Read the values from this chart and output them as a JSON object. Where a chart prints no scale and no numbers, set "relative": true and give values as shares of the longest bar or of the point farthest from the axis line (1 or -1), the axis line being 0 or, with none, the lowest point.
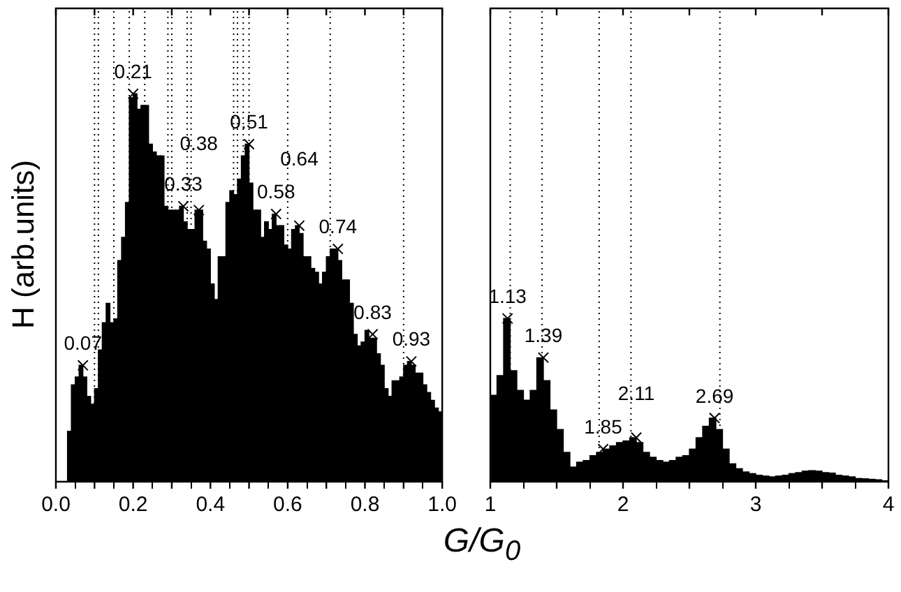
{
  "chart_data": [
    {
      "type": "histogram",
      "relative": true,
      "ylabel": "H (arb.units)",
      "xlabel": "G/G$_{0}$",
      "tick_labels": "x",
      "marker": "cross",
      "xlim": [
        0,
        1
      ],
      "xticks": [
        {
          "value": 0,
          "label": "0.0"
        },
        {
          "value": 0.1,
          "label": null
        },
        {
          "value": 0.2,
          "label": "0.2"
        },
        {
          "value": 0.3,
          "label": null
        },
        {
          "value": 0.4,
          "label": "0.4"
        },
        {
          "value": 0.5,
          "label": null
        },
        {
          "value": 0.6,
          "label": "0.6"
        },
        {
          "value": 0.7,
          "label": null
        },
        {
          "value": 0.8,
          "label": "0.8"
        },
        {
          "value": 0.9,
          "label": null
        },
        {
          "value": 1,
          "label": "1.0"
        }
      ],
      "series": [
        {
          "type": "histogram",
          "color": "#000000",
          "bins": [
            0.03,
            0.04,
            0.05,
            0.06,
            0.07,
            0.08,
            0.09,
            0.1,
            0.11,
            0.12,
            0.13,
            0.14,
            0.15,
            0.16,
            0.17,
            0.18,
            0.19,
            0.2,
            0.21,
            0.22,
            0.23,
            0.24,
            0.25,
            0.26,
            0.27,
            0.28,
            0.29,
            0.3,
            0.31,
            0.32,
            0.33,
            0.34,
            0.35,
            0.36,
            0.37,
            0.38,
            0.39,
            0.4,
            0.41,
            0.42,
            0.43,
            0.44,
            0.45,
            0.46,
            0.47,
            0.48,
            0.49,
            0.5,
            0.51,
            0.52,
            0.53,
            0.54,
            0.55,
            0.56,
            0.57,
            0.58,
            0.59,
            0.6,
            0.61,
            0.62,
            0.63,
            0.64,
            0.65,
            0.66,
            0.67,
            0.68,
            0.69,
            0.7,
            0.71,
            0.72,
            0.73,
            0.74,
            0.75,
            0.76,
            0.77,
            0.78,
            0.79,
            0.8,
            0.81,
            0.82,
            0.83,
            0.84,
            0.85,
            0.86,
            0.87,
            0.88,
            0.89,
            0.9,
            0.91,
            0.92,
            0.93,
            0.94,
            0.95,
            0.96,
            0.97,
            0.98,
            0.99,
            1.0
          ],
          "values": [
            0.13,
            0.25,
            0.27,
            0.3,
            0.27,
            0.22,
            0.2,
            0.24,
            0.34,
            0.41,
            0.46,
            0.41,
            0.42,
            0.57,
            0.63,
            0.72,
            0.99,
            1.0,
            0.96,
            0.97,
            0.97,
            0.87,
            0.85,
            0.84,
            0.84,
            0.71,
            0.7,
            0.7,
            0.7,
            0.71,
            0.67,
            0.65,
            0.65,
            0.7,
            0.7,
            0.62,
            0.6,
            0.51,
            0.47,
            0.58,
            0.58,
            0.72,
            0.75,
            0.74,
            0.78,
            0.84,
            0.87,
            0.77,
            0.7,
            0.7,
            0.63,
            0.67,
            0.65,
            0.69,
            0.66,
            0.66,
            0.61,
            0.6,
            0.65,
            0.66,
            0.64,
            0.58,
            0.58,
            0.55,
            0.54,
            0.51,
            0.54,
            0.58,
            0.6,
            0.6,
            0.57,
            0.52,
            0.52,
            0.46,
            0.38,
            0.35,
            0.36,
            0.39,
            0.37,
            0.37,
            0.33,
            0.3,
            0.24,
            0.22,
            0.26,
            0.26,
            0.27,
            0.3,
            0.31,
            0.3,
            0.28,
            0.28,
            0.25,
            0.23,
            0.21,
            0.19,
            0.18
          ]
        },
        {
          "type": "scatter",
          "color": "#000000",
          "x": [
            0.07,
            0.2,
            0.33,
            0.37,
            0.5,
            0.57,
            0.63,
            0.73,
            0.82,
            0.92
          ],
          "values": [
            0.3,
            1.0,
            0.71,
            0.7,
            0.87,
            0.69,
            0.66,
            0.6,
            0.38,
            0.31
          ]
        }
      ],
      "ref_lines": [
        {
          "axis": "x",
          "value": 0.1,
          "line_style": "dotted",
          "color": "#000000"
        },
        {
          "axis": "x",
          "value": 0.11,
          "line_style": "dotted",
          "color": "#000000"
        },
        {
          "axis": "x",
          "value": 0.15,
          "line_style": "dotted",
          "color": "#000000"
        },
        {
          "axis": "x",
          "value": 0.19,
          "line_style": "dotted",
          "color": "#000000"
        },
        {
          "axis": "x",
          "value": 0.23,
          "line_style": "dotted",
          "color": "#000000"
        },
        {
          "axis": "x",
          "value": 0.29,
          "line_style": "dotted",
          "color": "#000000"
        },
        {
          "axis": "x",
          "value": 0.3,
          "line_style": "dotted",
          "color": "#000000"
        },
        {
          "axis": "x",
          "value": 0.34,
          "line_style": "dotted",
          "color": "#000000"
        },
        {
          "axis": "x",
          "value": 0.35,
          "line_style": "dotted",
          "color": "#000000"
        },
        {
          "axis": "x",
          "value": 0.46,
          "line_style": "dotted",
          "color": "#000000"
        },
        {
          "axis": "x",
          "value": 0.47,
          "line_style": "dotted",
          "color": "#000000"
        },
        {
          "axis": "x",
          "value": 0.485,
          "line_style": "dotted",
          "color": "#000000"
        },
        {
          "axis": "x",
          "value": 0.5,
          "line_style": "dotted",
          "color": "#000000"
        },
        {
          "axis": "x",
          "value": 0.6,
          "line_style": "dotted",
          "color": "#000000"
        },
        {
          "axis": "x",
          "value": 0.71,
          "line_style": "dotted",
          "color": "#000000"
        },
        {
          "axis": "x",
          "value": 0.9,
          "line_style": "dotted",
          "color": "#000000"
        }
      ],
      "annotations": [
        {
          "text": "0.07",
          "x": 0.07,
          "y": 0.3
        },
        {
          "text": "0.21",
          "x": 0.2,
          "y": 1.0
        },
        {
          "text": "0.33",
          "x": 0.33,
          "y": 0.71
        },
        {
          "text": "0.38",
          "x": 0.37,
          "y": 0.7
        },
        {
          "text": "0.51",
          "x": 0.5,
          "y": 0.87
        },
        {
          "text": "0.58",
          "x": 0.57,
          "y": 0.69
        },
        {
          "text": "0.64",
          "x": 0.63,
          "y": 0.66
        },
        {
          "text": "0.74",
          "x": 0.73,
          "y": 0.6
        },
        {
          "text": "0.83",
          "x": 0.82,
          "y": 0.38
        },
        {
          "text": "0.93",
          "x": 0.92,
          "y": 0.31
        }
      ]
    },
    {
      "type": "histogram",
      "relative": true,
      "tick_labels": "x",
      "marker": "cross",
      "xlim": [
        1,
        4
      ],
      "xticks": [
        1,
        {
          "value": 1.5,
          "label": null
        },
        2,
        {
          "value": 2.5,
          "label": null
        },
        3,
        {
          "value": 3.5,
          "label": null
        },
        4
      ],
      "series": [
        {
          "type": "histogram",
          "color": "#000000",
          "bins": [
            1.0,
            1.05,
            1.1,
            1.15,
            1.2,
            1.25,
            1.3,
            1.35,
            1.4,
            1.45,
            1.5,
            1.55,
            1.6,
            1.65,
            1.7,
            1.75,
            1.8,
            1.85,
            1.9,
            1.95,
            2.0,
            2.05,
            2.1,
            2.15,
            2.2,
            2.25,
            2.3,
            2.35,
            2.4,
            2.45,
            2.5,
            2.55,
            2.6,
            2.65,
            2.7,
            2.75,
            2.8,
            2.85,
            2.9,
            2.95,
            3.0,
            3.05,
            3.1,
            3.15,
            3.2,
            3.25,
            3.3,
            3.35,
            3.4,
            3.45,
            3.5,
            3.55,
            3.6,
            3.65,
            3.7,
            3.75,
            3.8,
            3.85,
            3.9,
            3.95,
            4.0
          ],
          "values": [
            0.53,
            0.65,
            1.0,
            0.68,
            0.56,
            0.5,
            0.56,
            0.76,
            0.62,
            0.44,
            0.32,
            0.18,
            0.09,
            0.12,
            0.13,
            0.16,
            0.18,
            0.2,
            0.22,
            0.24,
            0.25,
            0.27,
            0.24,
            0.18,
            0.15,
            0.13,
            0.12,
            0.13,
            0.15,
            0.16,
            0.2,
            0.27,
            0.34,
            0.39,
            0.32,
            0.2,
            0.11,
            0.08,
            0.06,
            0.05,
            0.04,
            0.035,
            0.03,
            0.035,
            0.04,
            0.05,
            0.056,
            0.065,
            0.068,
            0.065,
            0.056,
            0.053,
            0.04,
            0.035,
            0.03,
            0.02,
            0.018,
            0.015,
            0.012,
            0.006
          ]
        },
        {
          "type": "scatter",
          "color": "#000000",
          "x": [
            1.13,
            1.4,
            1.85,
            2.1,
            2.69
          ],
          "values": [
            1.0,
            0.76,
            0.2,
            0.27,
            0.39
          ]
        }
      ],
      "ref_lines": [
        {
          "axis": "x",
          "value": 1.15,
          "line_style": "dotted",
          "color": "#000000"
        },
        {
          "axis": "x",
          "value": 1.39,
          "line_style": "dotted",
          "color": "#000000"
        },
        {
          "axis": "x",
          "value": 1.82,
          "line_style": "dotted",
          "color": "#000000"
        },
        {
          "axis": "x",
          "value": 2.06,
          "line_style": "dotted",
          "color": "#000000"
        },
        {
          "axis": "x",
          "value": 2.73,
          "line_style": "dotted",
          "color": "#000000"
        }
      ],
      "annotations": [
        {
          "text": "1.13",
          "x": 1.13,
          "y": 1.0
        },
        {
          "text": "1.39",
          "x": 1.4,
          "y": 0.76
        },
        {
          "text": "1.85",
          "x": 1.85,
          "y": 0.2
        },
        {
          "text": "2.11",
          "x": 2.1,
          "y": 0.27
        },
        {
          "text": "2.69",
          "x": 2.69,
          "y": 0.39
        }
      ]
    }
  ]
}
